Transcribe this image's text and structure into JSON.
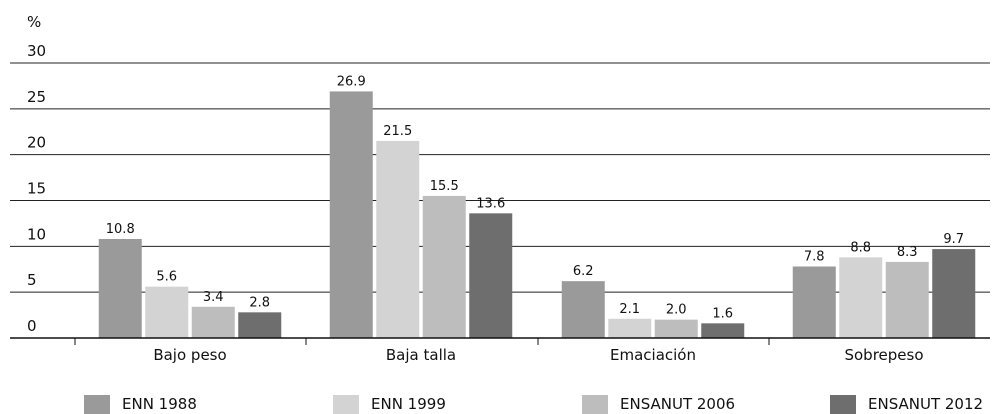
{
  "chart_data": {
    "type": "bar",
    "ylabel": "%",
    "ylim": [
      0,
      30
    ],
    "yticks": [
      0,
      5,
      10,
      15,
      20,
      25,
      30
    ],
    "grid": true,
    "legend_position": "bottom",
    "categories": [
      "Bajo peso",
      "Baja talla",
      "Emaciación",
      "Sobrepeso"
    ],
    "series": [
      {
        "name": "ENN 1988",
        "color": "#9a9a9a",
        "values": [
          10.8,
          26.9,
          6.2,
          7.8
        ]
      },
      {
        "name": "ENN 1999",
        "color": "#d3d3d3",
        "values": [
          5.6,
          21.5,
          2.1,
          8.8
        ]
      },
      {
        "name": "ENSANUT 2006",
        "color": "#bdbdbd",
        "values": [
          3.4,
          15.5,
          2.0,
          8.3
        ]
      },
      {
        "name": "ENSANUT 2012",
        "color": "#6e6e6e",
        "values": [
          2.8,
          13.6,
          1.6,
          9.7
        ]
      }
    ],
    "data_labels": [
      [
        "10.8",
        "26.9",
        "6.2",
        "7.8"
      ],
      [
        "5.6",
        "21.5",
        "2.1",
        "8.8"
      ],
      [
        "3.4",
        "15.5",
        "2.0",
        "8.3"
      ],
      [
        "2.8",
        "13.6",
        "1.6",
        "9.7"
      ]
    ]
  }
}
